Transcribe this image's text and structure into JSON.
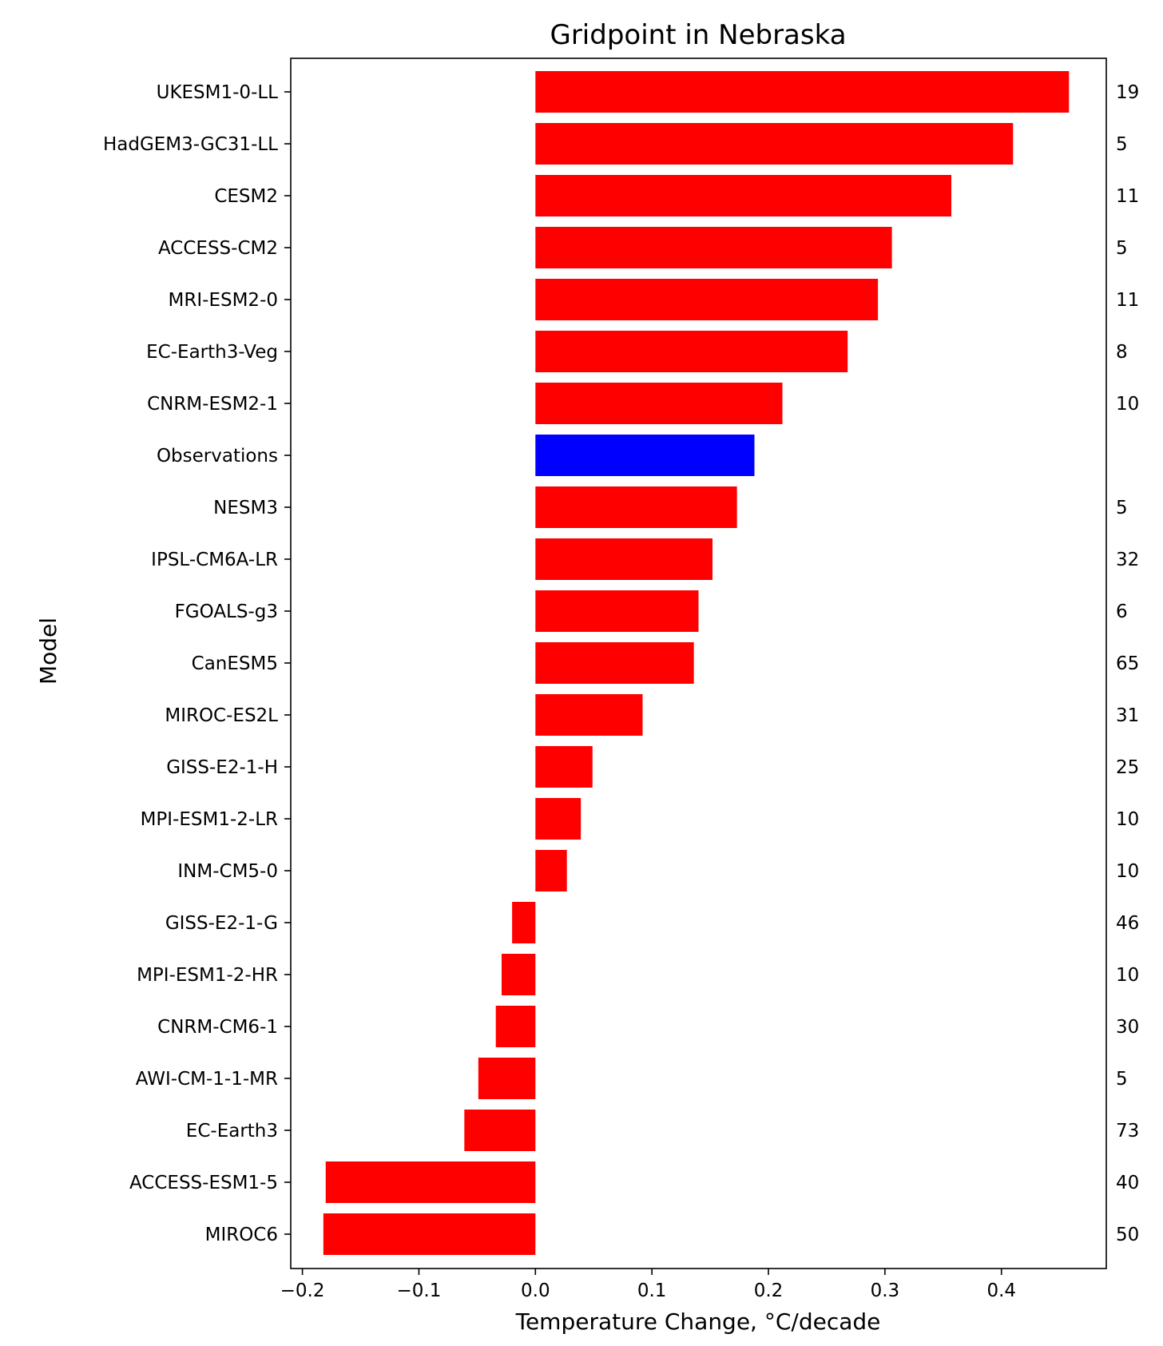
{
  "chart_data": {
    "type": "bar",
    "orientation": "horizontal",
    "title": "Gridpoint in Nebraska",
    "xlabel": "Temperature Change, °C/decade",
    "ylabel": "Model",
    "xlim": [
      -0.21,
      0.49
    ],
    "xticks": [
      -0.2,
      -0.1,
      0.0,
      0.1,
      0.2,
      0.3,
      0.4
    ],
    "xtick_labels": [
      "−0.2",
      "−0.1",
      "0.0",
      "0.1",
      "0.2",
      "0.3",
      "0.4"
    ],
    "grid": false,
    "colors": {
      "model": "#ff0000",
      "observations": "#0000ff"
    },
    "categories": [
      "UKESM1-0-LL",
      "HadGEM3-GC31-LL",
      "CESM2",
      "ACCESS-CM2",
      "MRI-ESM2-0",
      "EC-Earth3-Veg",
      "CNRM-ESM2-1",
      "Observations",
      "NESM3",
      "IPSL-CM6A-LR",
      "FGOALS-g3",
      "CanESM5",
      "MIROC-ES2L",
      "GISS-E2-1-H",
      "MPI-ESM1-2-LR",
      "INM-CM5-0",
      "GISS-E2-1-G",
      "MPI-ESM1-2-HR",
      "CNRM-CM6-1",
      "AWI-CM-1-1-MR",
      "EC-Earth3",
      "ACCESS-ESM1-5",
      "MIROC6"
    ],
    "values": [
      0.458,
      0.41,
      0.357,
      0.306,
      0.294,
      0.268,
      0.212,
      0.188,
      0.173,
      0.152,
      0.14,
      0.136,
      0.092,
      0.049,
      0.039,
      0.027,
      -0.02,
      -0.029,
      -0.034,
      -0.049,
      -0.061,
      -0.18,
      -0.182
    ],
    "highlight": [
      "Observations"
    ],
    "counts": [
      "19",
      "5",
      "11",
      "5",
      "11",
      "8",
      "10",
      "",
      "5",
      "32",
      "6",
      "65",
      "31",
      "25",
      "10",
      "10",
      "46",
      "10",
      "30",
      "5",
      "73",
      "40",
      "50"
    ]
  }
}
